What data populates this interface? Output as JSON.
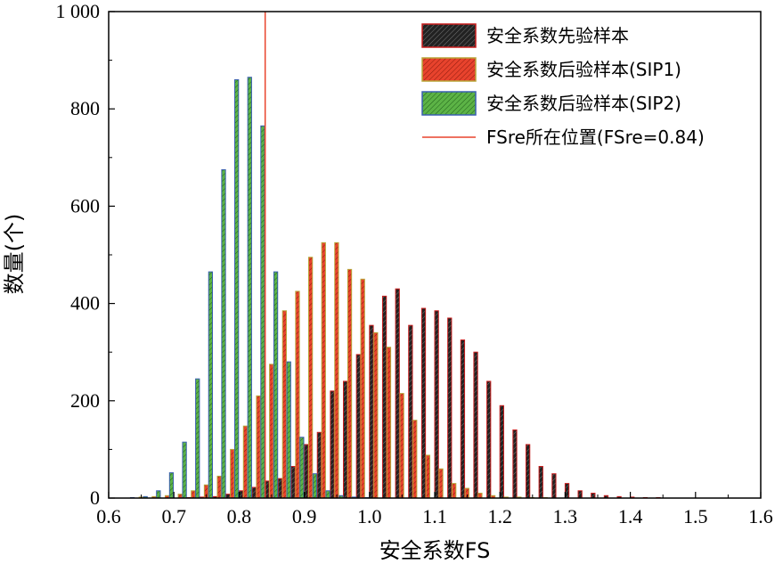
{
  "chart_data": {
    "type": "bar",
    "xlabel": "安全系数FS",
    "ylabel": "数量(个)",
    "xlim": [
      0.6,
      1.6
    ],
    "ylim": [
      0,
      1000
    ],
    "xticks": [
      "0.6",
      "0.7",
      "0.8",
      "0.9",
      "1.0",
      "1.1",
      "1.2",
      "1.3",
      "1.4",
      "1.5",
      "1.6"
    ],
    "yticks": [
      "0",
      "200",
      "400",
      "600",
      "800",
      "1 000"
    ],
    "bin_width": 0.02,
    "bin_starts": [
      0.6,
      0.62,
      0.64,
      0.66,
      0.68,
      0.7,
      0.72,
      0.74,
      0.76,
      0.78,
      0.8,
      0.82,
      0.84,
      0.86,
      0.88,
      0.9,
      0.92,
      0.94,
      0.96,
      0.98,
      1.0,
      1.02,
      1.04,
      1.06,
      1.08,
      1.1,
      1.12,
      1.14,
      1.16,
      1.18,
      1.2,
      1.22,
      1.24,
      1.26,
      1.28,
      1.3,
      1.32,
      1.34,
      1.36,
      1.38,
      1.4,
      1.42,
      1.44,
      1.46,
      1.48
    ],
    "series": [
      {
        "name": "安全系数先验样本",
        "color": "#222222",
        "values": [
          0,
          0,
          0,
          0,
          0,
          0,
          1,
          2,
          3,
          8,
          15,
          22,
          35,
          40,
          65,
          110,
          135,
          220,
          240,
          295,
          355,
          415,
          430,
          355,
          390,
          385,
          370,
          325,
          300,
          240,
          190,
          140,
          110,
          65,
          50,
          30,
          15,
          10,
          5,
          3,
          2,
          1,
          1,
          0,
          0
        ]
      },
      {
        "name": "安全系数后验样本(SIP1)",
        "color": "#e8432d",
        "values": [
          0,
          0,
          2,
          3,
          5,
          8,
          15,
          27,
          45,
          100,
          148,
          210,
          275,
          385,
          425,
          495,
          525,
          525,
          470,
          450,
          340,
          310,
          215,
          160,
          88,
          60,
          30,
          20,
          10,
          5,
          2,
          2,
          1,
          1,
          0,
          0,
          0,
          0,
          0,
          0,
          0,
          0,
          0,
          0,
          0
        ]
      },
      {
        "name": "安全系数后验样本(SIP2)",
        "color": "#5cb346",
        "values": [
          0,
          1,
          3,
          15,
          52,
          115,
          245,
          465,
          675,
          860,
          865,
          765,
          465,
          280,
          125,
          50,
          15,
          5,
          2,
          1,
          0,
          0,
          0,
          0,
          0,
          0,
          0,
          0,
          0,
          0,
          0,
          0,
          0,
          0,
          0,
          0,
          0,
          0,
          0,
          0,
          0,
          0,
          0,
          0,
          0
        ]
      }
    ],
    "reference_line": {
      "value": 0.84,
      "color": "#e8432d",
      "label": "FSre所在位置(FSre=0.84)"
    },
    "legend_placement": "top-right",
    "grid": false
  }
}
